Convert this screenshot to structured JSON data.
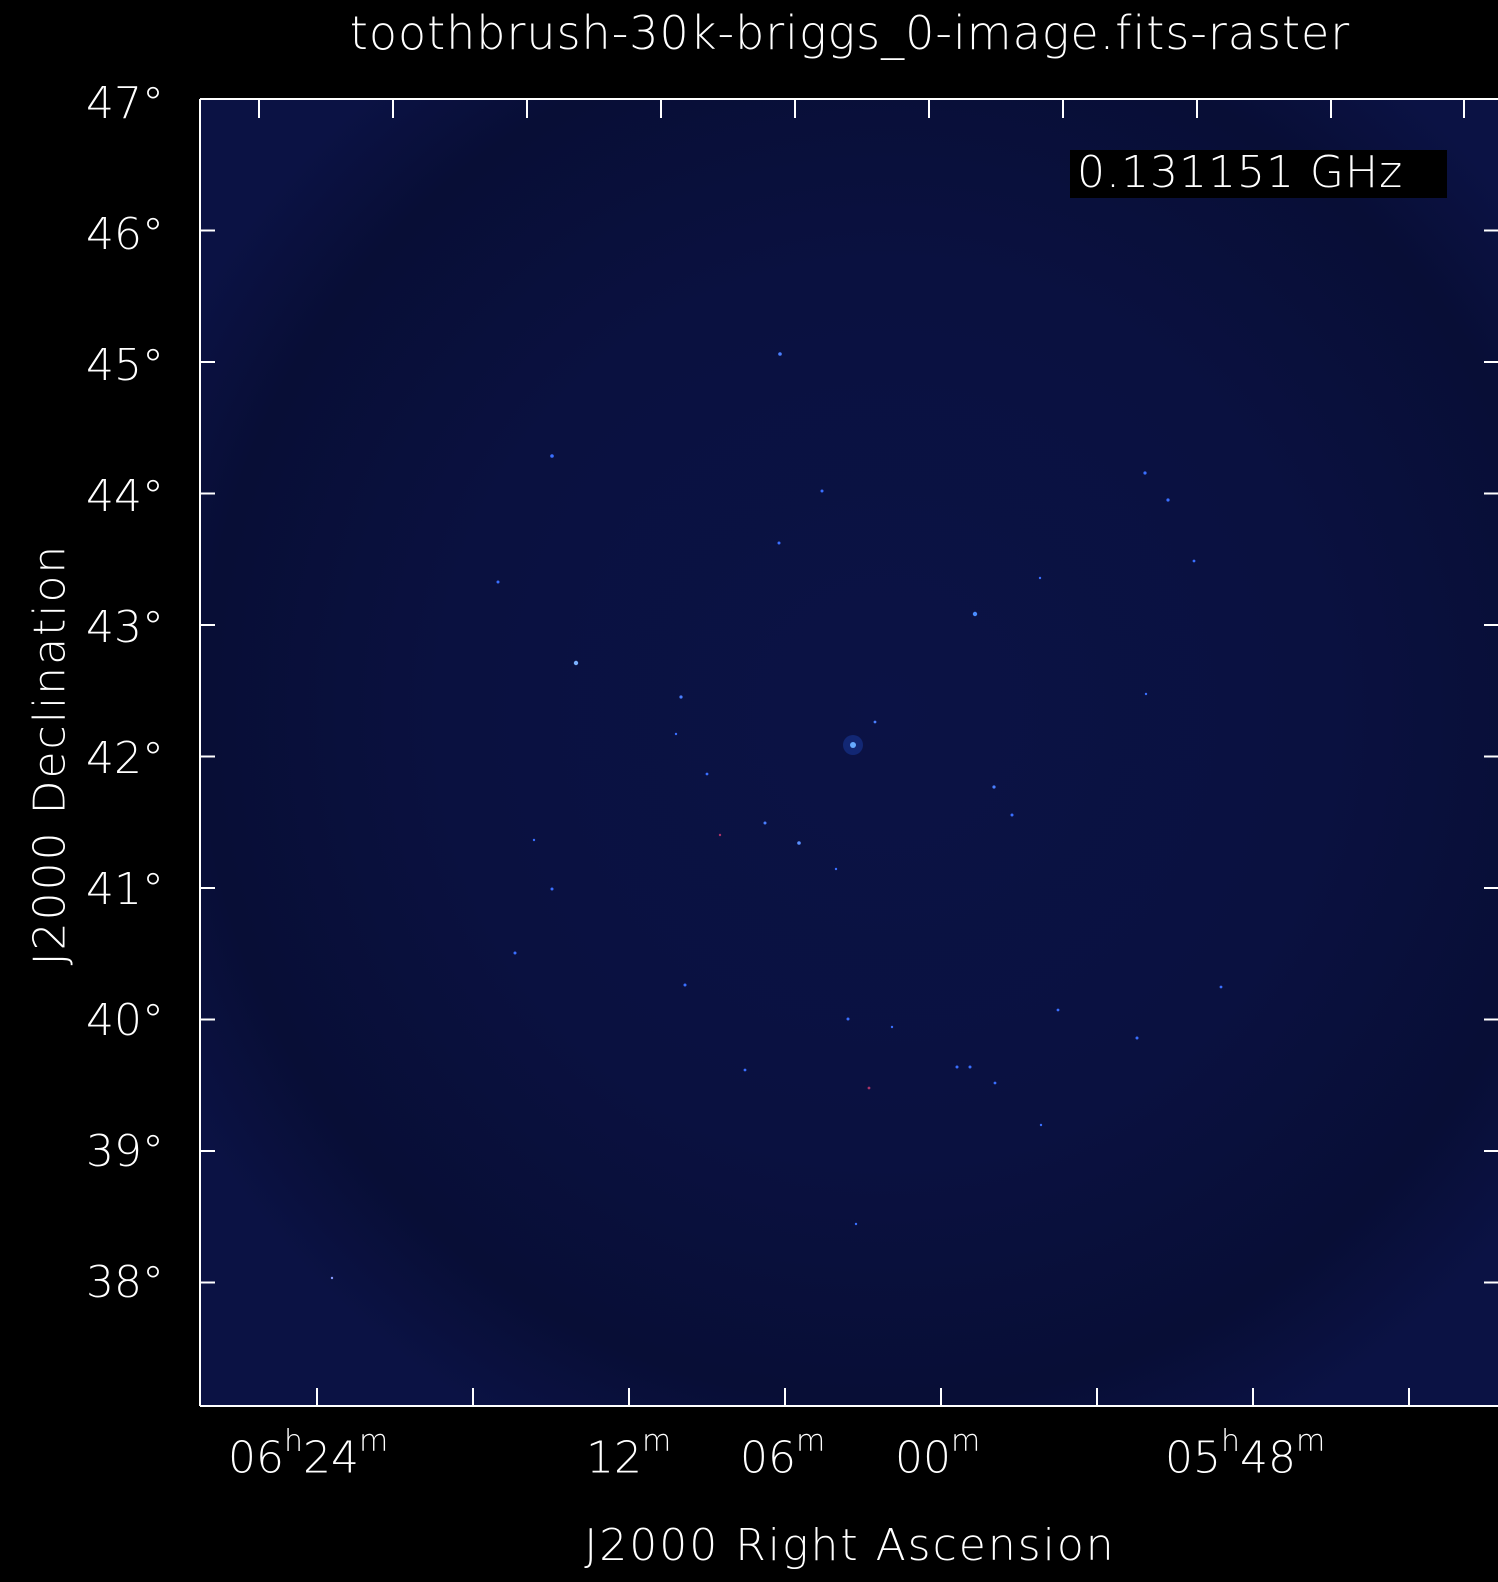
{
  "title": "toothbrush-30k-briggs_0-image.fits-raster",
  "frequency_label": "0.131151 GHz",
  "axes": {
    "x_label": "J2000 Right Ascension",
    "y_label": "J2000 Declination",
    "y_ticks": [
      "47°",
      "46°",
      "45°",
      "44°",
      "43°",
      "42°",
      "41°",
      "40°",
      "39°",
      "38°"
    ],
    "x_ticks": [
      {
        "h": "06",
        "m": "24"
      },
      {
        "h": "",
        "m": "12"
      },
      {
        "h": "",
        "m": "06"
      },
      {
        "h": "",
        "m": "00"
      },
      {
        "h": "05",
        "m": "48"
      }
    ]
  },
  "colors": {
    "background": "#000000",
    "image_field": "#0a1140",
    "image_core": "#071038",
    "axis": "#ffffff",
    "source": "#3a78ff"
  }
}
